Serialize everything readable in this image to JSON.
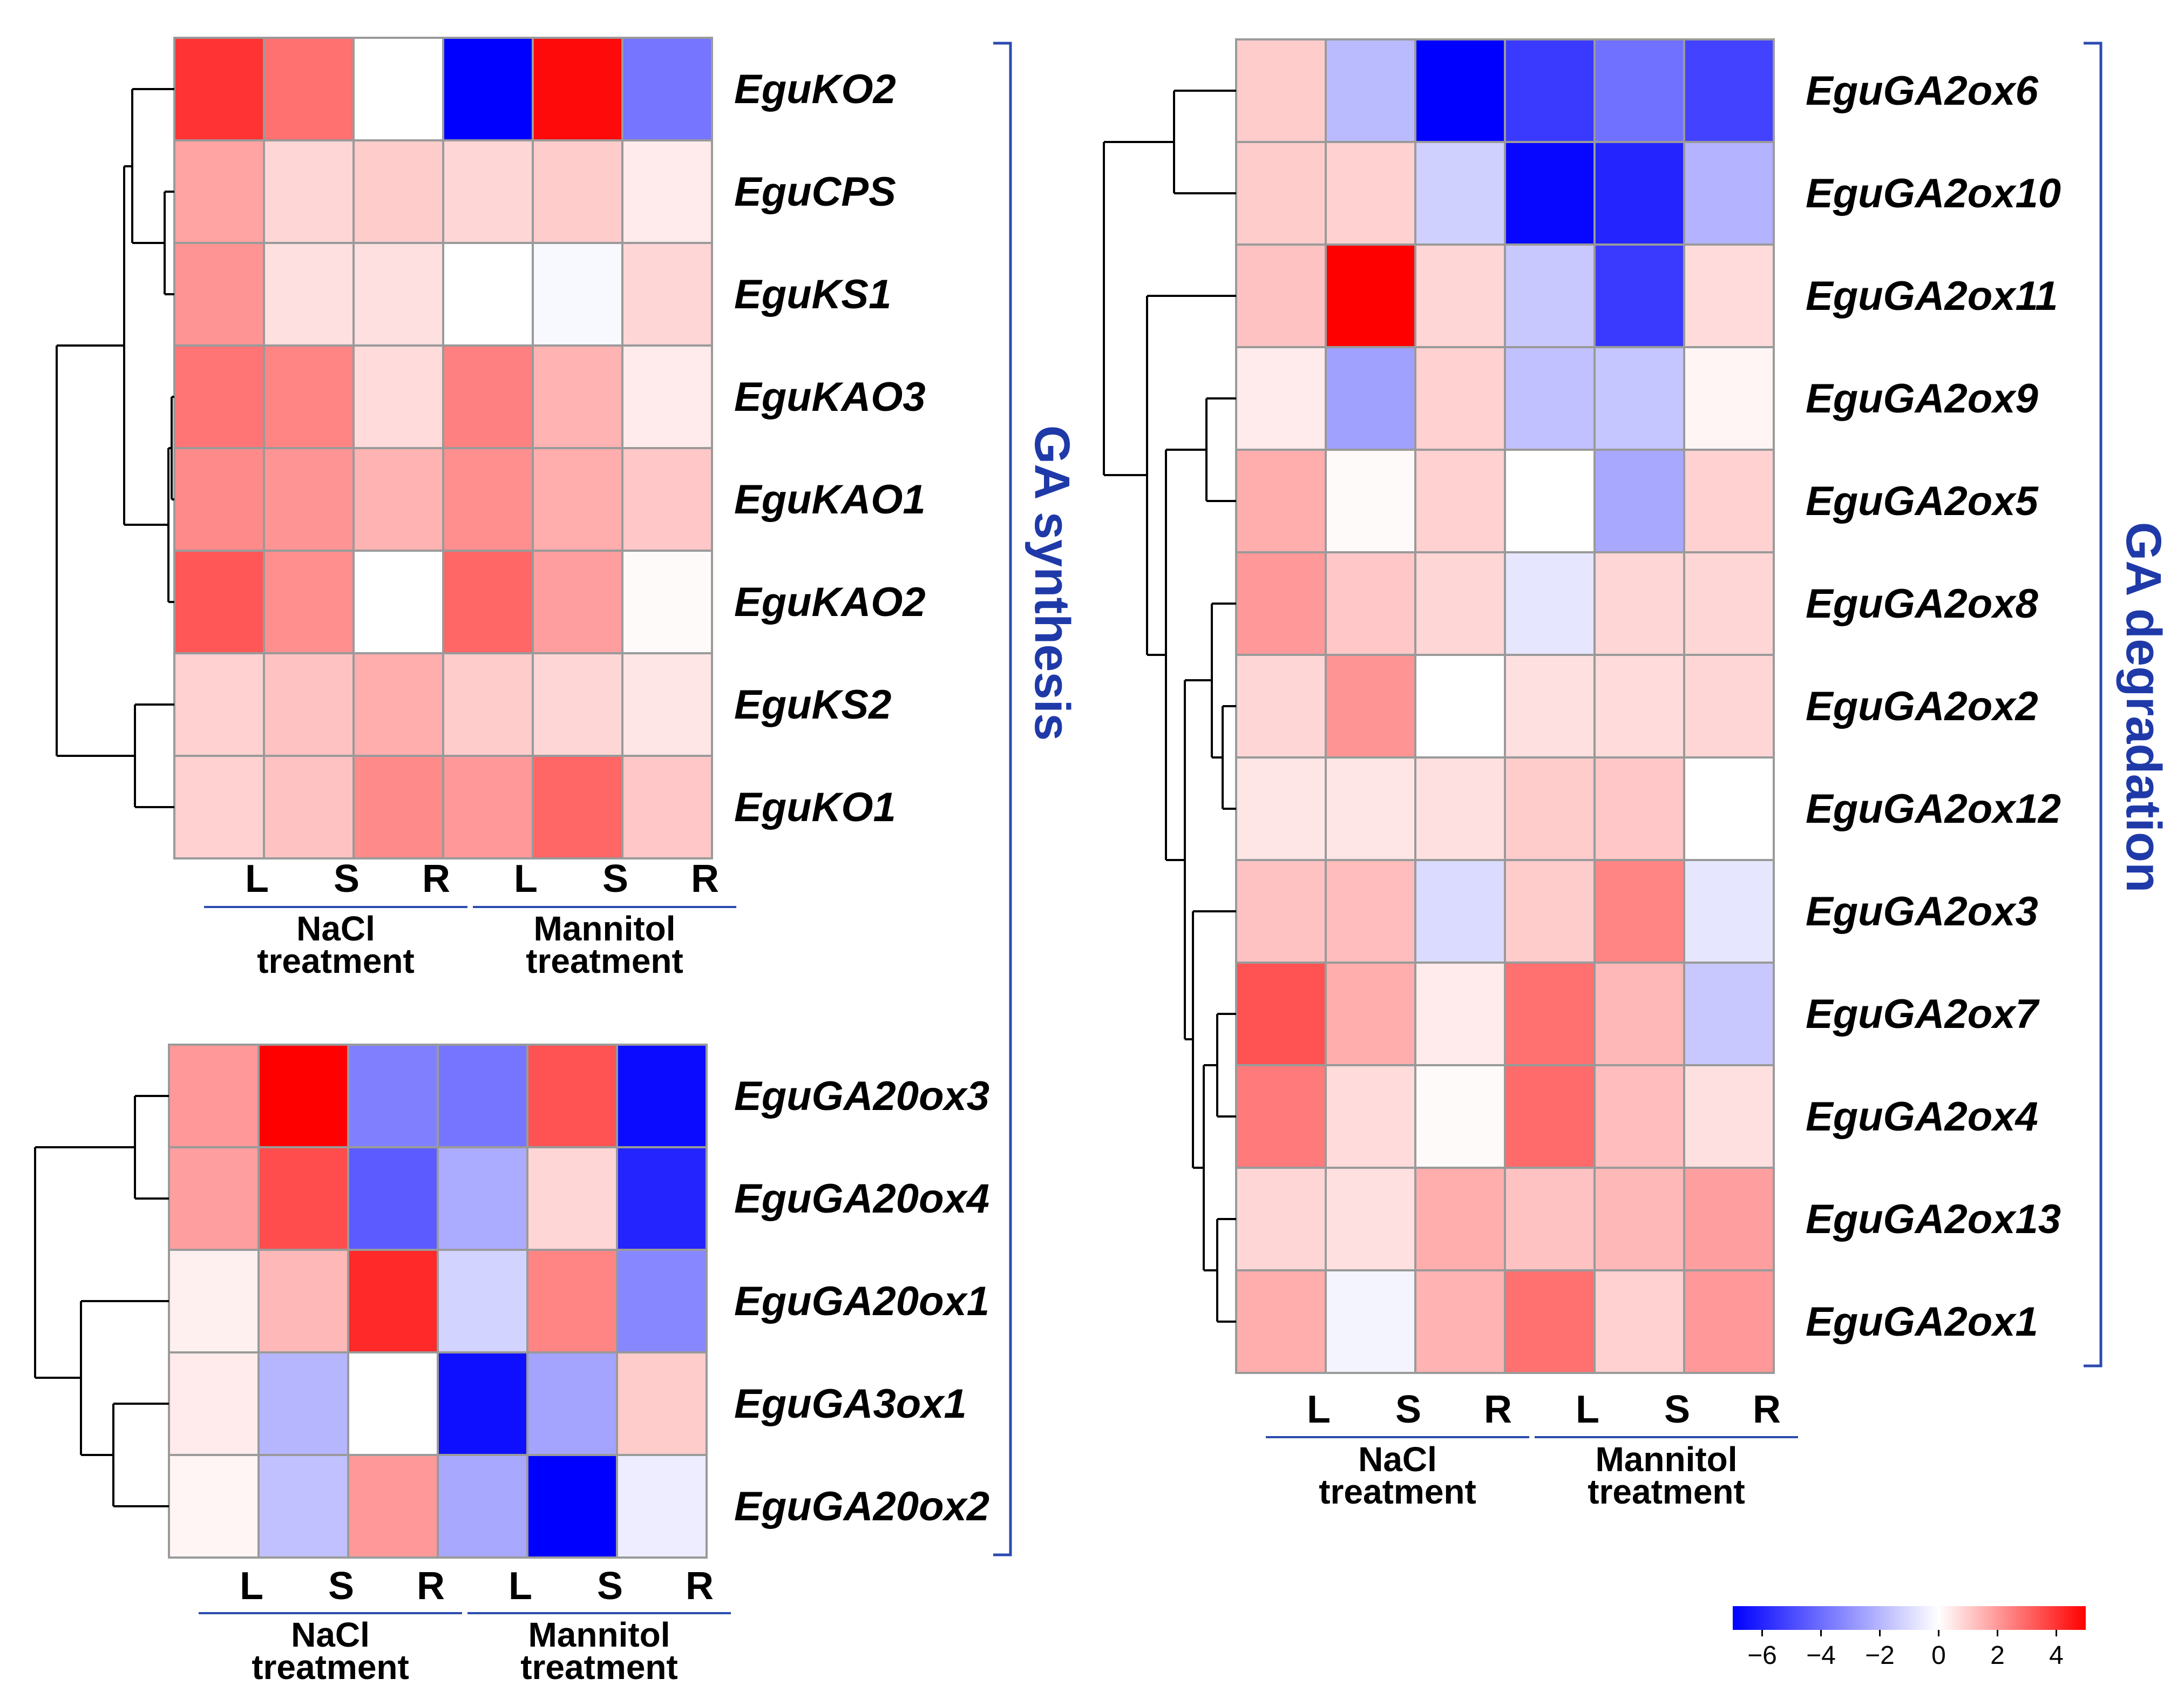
{
  "chart_data": {
    "type": "heatmap",
    "colorscale": {
      "low_color": "#0000ff",
      "mid_color": "#ffffff",
      "high_color": "#ff0000",
      "min": -7,
      "mid": 0,
      "max": 5,
      "ticks": [
        "−6",
        "−4",
        "−2",
        "0",
        "2",
        "4"
      ],
      "tick_values": [
        -6,
        -4,
        -2,
        0,
        2,
        4
      ]
    },
    "panels": [
      {
        "id": "ga-synthesis-top",
        "rows": [
          "EguKO2",
          "EguCPS",
          "EguKS1",
          "EguKAO3",
          "EguKAO1",
          "EguKAO2",
          "EguKS2",
          "EguKO1"
        ],
        "columns": [
          "L",
          "S",
          "R",
          "L",
          "S",
          "R"
        ],
        "groups": [
          {
            "line1": "NaCl",
            "line2": "treatment"
          },
          {
            "line1": "Mannitol",
            "line2": "treatment"
          }
        ],
        "values": [
          [
            4.0,
            2.8,
            0.0,
            -7.0,
            4.8,
            -3.8
          ],
          [
            1.8,
            0.8,
            1.0,
            0.8,
            1.0,
            0.4
          ],
          [
            2.1,
            0.6,
            0.6,
            0.0,
            -0.2,
            0.8
          ],
          [
            2.7,
            2.4,
            0.7,
            2.5,
            1.5,
            0.4
          ],
          [
            2.3,
            2.1,
            1.5,
            2.2,
            1.6,
            1.1
          ],
          [
            3.3,
            2.2,
            0.0,
            3.0,
            1.9,
            0.1
          ],
          [
            0.9,
            1.2,
            1.6,
            1.0,
            0.8,
            0.5
          ],
          [
            0.9,
            1.2,
            2.3,
            2.0,
            3.0,
            1.1
          ]
        ],
        "bracket": "GA synthesis"
      },
      {
        "id": "ga-synthesis-bottom",
        "rows": [
          "EguGA20ox3",
          "EguGA20ox4",
          "EguGA20ox1",
          "EguGA3ox1",
          "EguGA20ox2"
        ],
        "columns": [
          "L",
          "S",
          "R",
          "L",
          "S",
          "R"
        ],
        "groups": [
          {
            "line1": "NaCl",
            "line2": "treatment"
          },
          {
            "line1": "Mannitol",
            "line2": "treatment"
          }
        ],
        "values": [
          [
            2.0,
            5.0,
            -3.5,
            -3.8,
            3.4,
            -6.7
          ],
          [
            1.9,
            3.5,
            -4.5,
            -2.3,
            0.8,
            -6.0
          ],
          [
            0.3,
            1.4,
            4.2,
            -1.2,
            2.4,
            -3.3
          ],
          [
            0.4,
            -2.0,
            0.0,
            -6.6,
            -2.5,
            1.0
          ],
          [
            0.2,
            -1.7,
            2.0,
            -2.4,
            -7.0,
            -0.5
          ]
        ],
        "bracket": "GA synthesis"
      },
      {
        "id": "ga-degradation",
        "rows": [
          "EguGA2ox6",
          "EguGA2ox10",
          "EguGA2ox11",
          "EguGA2ox9",
          "EguGA2ox5",
          "EguGA2ox8",
          "EguGA2ox2",
          "EguGA2ox12",
          "EguGA2ox3",
          "EguGA2ox7",
          "EguGA2ox4",
          "EguGA2ox13",
          "EguGA2ox1"
        ],
        "columns": [
          "L",
          "S",
          "R",
          "L",
          "S",
          "R"
        ],
        "groups": [
          {
            "line1": "NaCl",
            "line2": "treatment"
          },
          {
            "line1": "Mannitol",
            "line2": "treatment"
          }
        ],
        "values": [
          [
            1.0,
            -1.9,
            -7.0,
            -5.4,
            -3.9,
            -5.2
          ],
          [
            1.0,
            0.9,
            -1.3,
            -6.8,
            -6.0,
            -2.1
          ],
          [
            1.2,
            5.0,
            0.8,
            -1.5,
            -5.4,
            0.7
          ],
          [
            0.4,
            -2.6,
            0.9,
            -1.7,
            -1.6,
            0.2
          ],
          [
            1.6,
            0.1,
            0.9,
            0.0,
            -2.4,
            0.9
          ],
          [
            2.0,
            1.1,
            0.8,
            -0.7,
            0.8,
            0.8
          ],
          [
            0.8,
            2.1,
            0.0,
            0.6,
            0.7,
            0.8
          ],
          [
            0.5,
            0.5,
            0.6,
            1.0,
            1.1,
            0.0
          ],
          [
            1.2,
            1.3,
            -1.0,
            1.0,
            2.4,
            -0.7
          ],
          [
            3.4,
            1.6,
            0.4,
            2.8,
            1.4,
            -1.5
          ],
          [
            2.6,
            0.7,
            0.1,
            2.9,
            1.3,
            0.6
          ],
          [
            0.8,
            0.6,
            1.6,
            1.2,
            1.4,
            1.9
          ],
          [
            1.6,
            -0.3,
            1.5,
            2.8,
            0.9,
            2.0
          ]
        ],
        "bracket": "GA degradation"
      }
    ]
  }
}
